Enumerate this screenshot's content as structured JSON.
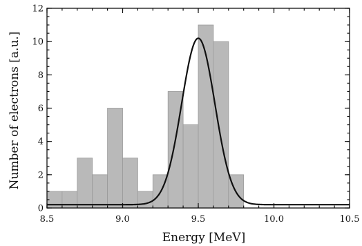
{
  "chart_data": {
    "type": "bar",
    "xlabel": "Energy [MeV]",
    "ylabel": "Number of electrons [a.u.]",
    "xlim": [
      8.5,
      10.5
    ],
    "ylim": [
      0,
      12
    ],
    "x_ticks": [
      "8.5",
      "9.0",
      "9.5",
      "10.0",
      "10.5"
    ],
    "y_ticks": [
      "0",
      "2",
      "4",
      "6",
      "8",
      "10",
      "12"
    ],
    "bin_width": 0.1,
    "bins": [
      {
        "x": 8.5,
        "value": 1
      },
      {
        "x": 8.6,
        "value": 1
      },
      {
        "x": 8.7,
        "value": 3
      },
      {
        "x": 8.8,
        "value": 2
      },
      {
        "x": 8.9,
        "value": 6
      },
      {
        "x": 9.0,
        "value": 3
      },
      {
        "x": 9.1,
        "value": 1
      },
      {
        "x": 9.2,
        "value": 2
      },
      {
        "x": 9.3,
        "value": 7
      },
      {
        "x": 9.4,
        "value": 5
      },
      {
        "x": 9.5,
        "value": 11
      },
      {
        "x": 9.6,
        "value": 10
      },
      {
        "x": 9.7,
        "value": 2
      }
    ],
    "fit_curve": {
      "type": "gaussian",
      "baseline": 0.2,
      "peak": 10.2,
      "center": 9.5,
      "sigma": 0.11
    },
    "grid": false,
    "colors": {
      "bars": "#b9b9b9",
      "curve": "#111111"
    }
  }
}
